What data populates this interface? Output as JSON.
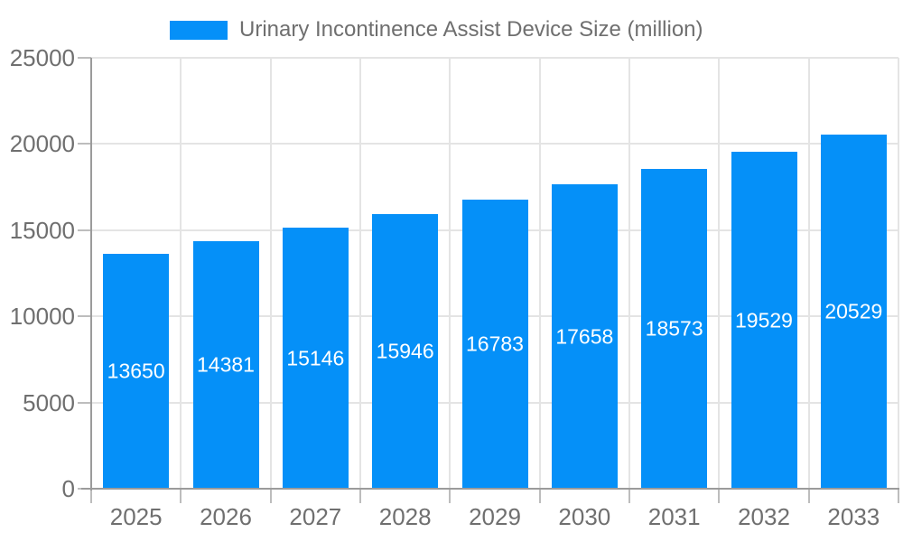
{
  "chart_data": {
    "type": "bar",
    "title": "Urinary Incontinence Assist Device Size (million)",
    "categories": [
      "2025",
      "2026",
      "2027",
      "2028",
      "2029",
      "2030",
      "2031",
      "2032",
      "2033"
    ],
    "values": [
      13650,
      14381,
      15146,
      15946,
      16783,
      17658,
      18573,
      19529,
      20529
    ],
    "series_name": "Urinary Incontinence Assist Device Size (million)",
    "xlabel": "",
    "ylabel": "",
    "ylim": [
      0,
      25000
    ],
    "yticks": [
      0,
      5000,
      10000,
      15000,
      20000,
      25000
    ],
    "grid": true,
    "legend_position": "top",
    "value_labels": "inside-center",
    "colors": {
      "bar": "#0590f8",
      "grid": "#e4e4e4",
      "axis": "#9b9b9b",
      "tick": "#bdbdbd",
      "text": "#6f6f6f",
      "value_label": "#ffffff"
    }
  }
}
